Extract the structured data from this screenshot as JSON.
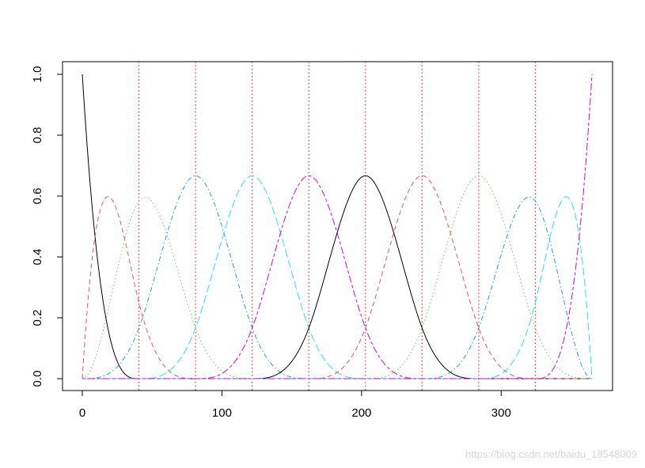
{
  "chart_data": {
    "type": "line",
    "title": "",
    "xlabel": "",
    "ylabel": "",
    "xlim": [
      0,
      365
    ],
    "ylim": [
      0,
      1
    ],
    "x_ticks": [
      0,
      100,
      200,
      300
    ],
    "y_ticks": [
      0.0,
      0.2,
      0.4,
      0.6,
      0.8,
      1.0
    ],
    "x_tick_labels": [
      "0",
      "100",
      "200",
      "300"
    ],
    "y_tick_labels": [
      "0.0",
      "0.2",
      "0.4",
      "0.6",
      "0.8",
      "1.0"
    ],
    "grid": false,
    "legend": "none",
    "basis": {
      "kind": "cubic-bspline",
      "degree": 3,
      "boundary": [
        0,
        365
      ],
      "interior_knots": [
        40.6,
        81.1,
        121.7,
        162.2,
        202.8,
        243.3,
        283.9,
        324.4
      ]
    },
    "series": [
      {
        "color": "#000000",
        "dash": "solid",
        "peak_x": 0,
        "peak_y": 1.0
      },
      {
        "color": "#DF536B",
        "dash": "dashed",
        "peak_x": 18,
        "peak_y": 0.6
      },
      {
        "color": "#61D04F",
        "dash": "dotted",
        "peak_x": 45,
        "peak_y": 0.6
      },
      {
        "color": "#2297E6",
        "dash": "dotdash",
        "peak_x": 81,
        "peak_y": 0.667
      },
      {
        "color": "#28E2E5",
        "dash": "longdash",
        "peak_x": 122,
        "peak_y": 0.667
      },
      {
        "color": "#CD0BBC",
        "dash": "twodash",
        "peak_x": 162,
        "peak_y": 0.667
      },
      {
        "color": "#000000",
        "dash": "solid",
        "peak_x": 203,
        "peak_y": 0.667
      },
      {
        "color": "#DF536B",
        "dash": "dashed",
        "peak_x": 243,
        "peak_y": 0.667
      },
      {
        "color": "#61D04F",
        "dash": "dotted",
        "peak_x": 284,
        "peak_y": 0.667
      },
      {
        "color": "#2297E6",
        "dash": "dotdash",
        "peak_x": 320,
        "peak_y": 0.6
      },
      {
        "color": "#28E2E5",
        "dash": "longdash",
        "peak_x": 347,
        "peak_y": 0.6
      },
      {
        "color": "#CD0BBC",
        "dash": "twodash",
        "peak_x": 365,
        "peak_y": 1.0
      }
    ],
    "vlines": {
      "x": [
        40.6,
        81.1,
        121.7,
        162.2,
        202.8,
        243.3,
        283.9,
        324.4
      ],
      "color": "#FF0000",
      "dash": "dotted"
    }
  },
  "watermark": "https://blog.csdn.net/baidu_18548009"
}
